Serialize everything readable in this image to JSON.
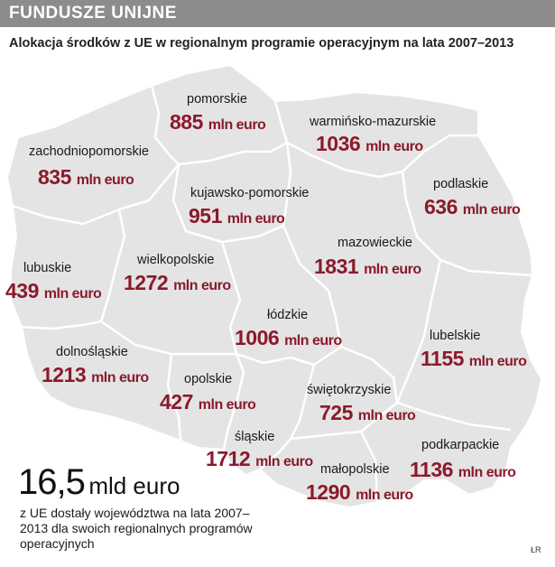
{
  "header": {
    "title": "FUNDUSZE UNIJNE"
  },
  "subtitle": "Alokacja środków z UE w regionalnym programie operacyjnym na lata 2007–2013",
  "colors": {
    "header_bg": "#8c8c8c",
    "map_fill": "#e4e4e4",
    "border": "#ffffff",
    "value_color": "#8b1a2b"
  },
  "regions": [
    {
      "name": "pomorskie",
      "amount": "885",
      "unit": "mln euro"
    },
    {
      "name": "warmińsko-mazurskie",
      "amount": "1036",
      "unit": "mln euro"
    },
    {
      "name": "zachodniopomorskie",
      "amount": "835",
      "unit": "mln euro"
    },
    {
      "name": "kujawsko-pomorskie",
      "amount": "951",
      "unit": "mln euro"
    },
    {
      "name": "podlaskie",
      "amount": "636",
      "unit": "mln euro"
    },
    {
      "name": "mazowieckie",
      "amount": "1831",
      "unit": "mln euro"
    },
    {
      "name": "lubuskie",
      "amount": "439",
      "unit": "mln euro"
    },
    {
      "name": "wielkopolskie",
      "amount": "1272",
      "unit": "mln euro"
    },
    {
      "name": "łódzkie",
      "amount": "1006",
      "unit": "mln euro"
    },
    {
      "name": "lubelskie",
      "amount": "1155",
      "unit": "mln euro"
    },
    {
      "name": "dolnośląskie",
      "amount": "1213",
      "unit": "mln euro"
    },
    {
      "name": "opolskie",
      "amount": "427",
      "unit": "mln euro"
    },
    {
      "name": "świętokrzyskie",
      "amount": "725",
      "unit": "mln euro"
    },
    {
      "name": "śląskie",
      "amount": "1712",
      "unit": "mln euro"
    },
    {
      "name": "podkarpackie",
      "amount": "1136",
      "unit": "mln euro"
    },
    {
      "name": "małopolskie",
      "amount": "1290",
      "unit": "mln euro"
    }
  ],
  "total": {
    "amount": "16,5",
    "unit": "mld euro",
    "caption": "z UE dostały województwa na lata 2007–2013 dla swoich regionalnych programów operacyjnych"
  },
  "credit": "ŁR"
}
